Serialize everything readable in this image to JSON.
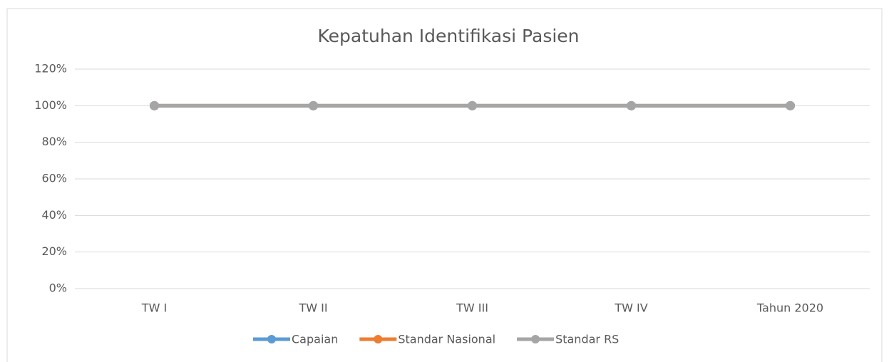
{
  "chart_data": {
    "type": "line",
    "title": "Kepatuhan Identifikasi Pasien",
    "categories": [
      "TW I",
      "TW II",
      "TW III",
      "TW IV",
      "Tahun 2020"
    ],
    "series": [
      {
        "name": "Capaian",
        "color": "#5b9bd5",
        "values": [
          100,
          100,
          100,
          100,
          100
        ]
      },
      {
        "name": "Standar Nasional",
        "color": "#ed7d31",
        "values": [
          100,
          100,
          100,
          100,
          100
        ]
      },
      {
        "name": "Standar RS",
        "color": "#a5a5a5",
        "values": [
          100,
          100,
          100,
          100,
          100
        ]
      }
    ],
    "ylim": [
      0,
      120
    ],
    "yticks": [
      {
        "value": 0,
        "label": "0%"
      },
      {
        "value": 20,
        "label": "20%"
      },
      {
        "value": 40,
        "label": "40%"
      },
      {
        "value": 60,
        "label": "60%"
      },
      {
        "value": 80,
        "label": "80%"
      },
      {
        "value": 100,
        "label": "100%"
      },
      {
        "value": 120,
        "label": "120%"
      }
    ],
    "grid": true,
    "legend": "bottom"
  }
}
